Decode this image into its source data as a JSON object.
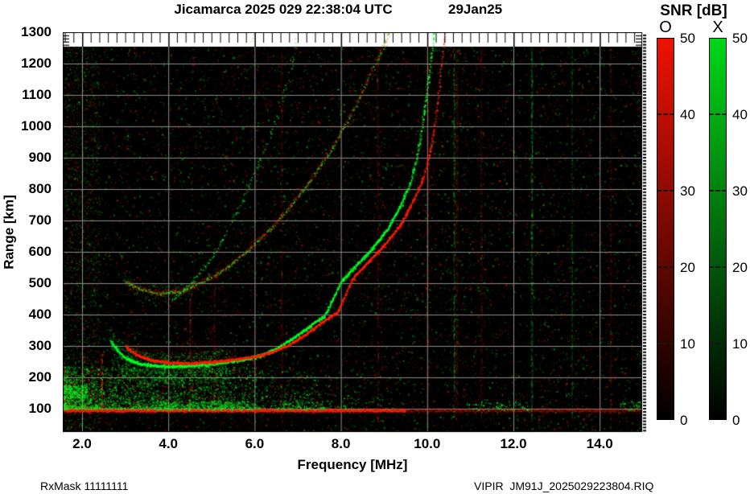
{
  "title": {
    "main": "Jicamarca 2025 029 22:38:04 UTC",
    "date": "29Jan25"
  },
  "footer": {
    "left": "RxMask 11111111",
    "right": "VIPIR  JM91J_2025029223804.RIQ"
  },
  "colorbar": {
    "title": "SNR [dB]",
    "min": 0,
    "max": 50,
    "ticks": [
      50,
      40,
      30,
      20,
      10,
      0
    ],
    "bars": [
      {
        "label": "O",
        "top_color": "#ee1200",
        "bottom_color": "#000000"
      },
      {
        "label": "X",
        "top_color": "#00d818",
        "bottom_color": "#000000"
      }
    ]
  },
  "chart_data": {
    "type": "heatmap",
    "xlabel": "Frequency [MHz]",
    "ylabel": "Range [km]",
    "x_ticks": [
      2,
      4,
      6,
      8,
      10,
      12,
      14
    ],
    "x_tick_labels": [
      "2.0",
      "4.0",
      "6.0",
      "8.0",
      "10.0",
      "12.0",
      "14.0"
    ],
    "x_range": [
      1.55,
      15.0
    ],
    "y_ticks": [
      100,
      200,
      300,
      400,
      500,
      600,
      700,
      800,
      900,
      1000,
      1100,
      1200,
      1300
    ],
    "y_tick_labels": [
      "100",
      "200",
      "300",
      "400",
      "500",
      "600",
      "700",
      "800",
      "900",
      "1000",
      "1100",
      "1200",
      "1300"
    ],
    "y_range": [
      25,
      1300
    ],
    "data_top_km": 1254,
    "grid": true,
    "grid_color": "#8c8c8c",
    "background": "#000000",
    "o_color": "#ff1e00",
    "x_color": "#00ff28",
    "series": [
      {
        "name": "F-trace O-mode 1st hop",
        "mode": "O",
        "render": "trace-O",
        "points": [
          [
            3.0,
            302
          ],
          [
            3.15,
            283
          ],
          [
            3.3,
            270
          ],
          [
            3.6,
            256
          ],
          [
            4.0,
            248
          ],
          [
            4.5,
            246
          ],
          [
            5.0,
            251
          ],
          [
            5.5,
            258
          ],
          [
            6.0,
            268
          ],
          [
            6.4,
            283
          ],
          [
            6.8,
            306
          ],
          [
            7.2,
            342
          ],
          [
            7.6,
            382
          ],
          [
            7.9,
            408
          ],
          [
            8.1,
            468
          ],
          [
            8.3,
            524
          ],
          [
            8.6,
            566
          ],
          [
            9.0,
            624
          ],
          [
            9.4,
            694
          ],
          [
            9.7,
            774
          ],
          [
            9.9,
            838
          ],
          [
            10.05,
            918
          ],
          [
            10.15,
            998
          ],
          [
            10.25,
            1098
          ],
          [
            10.32,
            1198
          ],
          [
            10.42,
            1312
          ]
        ]
      },
      {
        "name": "F-trace X-mode 1st hop",
        "mode": "X",
        "render": "trace-X",
        "points": [
          [
            2.65,
            318
          ],
          [
            2.8,
            288
          ],
          [
            3.0,
            262
          ],
          [
            3.3,
            246
          ],
          [
            3.7,
            238
          ],
          [
            4.2,
            236
          ],
          [
            4.7,
            241
          ],
          [
            5.2,
            248
          ],
          [
            5.7,
            257
          ],
          [
            6.1,
            271
          ],
          [
            6.5,
            293
          ],
          [
            6.9,
            328
          ],
          [
            7.3,
            368
          ],
          [
            7.6,
            396
          ],
          [
            7.8,
            450
          ],
          [
            8.0,
            508
          ],
          [
            8.3,
            552
          ],
          [
            8.7,
            610
          ],
          [
            9.1,
            680
          ],
          [
            9.4,
            758
          ],
          [
            9.6,
            822
          ],
          [
            9.75,
            902
          ],
          [
            9.85,
            982
          ],
          [
            9.95,
            1082
          ],
          [
            10.05,
            1182
          ],
          [
            10.15,
            1300
          ]
        ]
      },
      {
        "name": "2nd-hop multiple echo",
        "mode": "mixed",
        "render": "speckle-mixed",
        "points": [
          [
            3.0,
            505
          ],
          [
            3.4,
            480
          ],
          [
            3.8,
            468
          ],
          [
            4.3,
            476
          ],
          [
            4.8,
            506
          ],
          [
            5.3,
            546
          ],
          [
            5.8,
            602
          ],
          [
            6.3,
            666
          ],
          [
            6.8,
            742
          ],
          [
            7.3,
            832
          ],
          [
            7.8,
            936
          ],
          [
            8.2,
            1032
          ],
          [
            8.6,
            1142
          ],
          [
            9.0,
            1262
          ],
          [
            9.12,
            1310
          ]
        ]
      },
      {
        "name": "oblique echo trace",
        "mode": "X",
        "render": "speckle-green",
        "points": [
          [
            4.05,
            445
          ],
          [
            4.5,
            498
          ],
          [
            4.9,
            562
          ],
          [
            5.3,
            652
          ],
          [
            5.8,
            792
          ],
          [
            6.2,
            922
          ],
          [
            6.6,
            1062
          ],
          [
            6.9,
            1232
          ],
          [
            7.0,
            1310
          ]
        ]
      },
      {
        "name": "3rd-hop faint echo",
        "mode": "O",
        "render": "speckle-red-faint",
        "points": [
          [
            3.9,
            830
          ],
          [
            4.4,
            932
          ],
          [
            4.9,
            1032
          ],
          [
            5.4,
            1142
          ],
          [
            5.9,
            1262
          ],
          [
            6.05,
            1310
          ]
        ]
      }
    ],
    "e_region": {
      "band_km": 96,
      "fuzz_top_km": 235,
      "dense_fmax": 5.5,
      "sporadic_segments": [
        [
          3.6,
          6.0,
          1.0
        ],
        [
          6.5,
          7.6,
          0.45
        ],
        [
          10.9,
          12.35,
          0.4
        ],
        [
          14.45,
          14.95,
          0.55
        ]
      ]
    },
    "rfi_stripes": [
      {
        "f": 2.45,
        "color": "red",
        "a": 0.5,
        "km": [
          90,
          290
        ]
      },
      {
        "f": 4.5,
        "color": "red",
        "a": 0.35,
        "km": [
          90,
          460
        ]
      },
      {
        "f": 5.06,
        "color": "red",
        "a": 0.25,
        "km": [
          90,
          520
        ]
      },
      {
        "f": 6.62,
        "color": "red",
        "a": 0.2,
        "km": [
          60,
          1250
        ]
      },
      {
        "f": 8.85,
        "color": "red",
        "a": 0.22,
        "km": [
          60,
          1250
        ]
      },
      {
        "f": 10.02,
        "color": "red",
        "a": 0.2,
        "km": [
          60,
          1250
        ]
      },
      {
        "f": 10.62,
        "color": "green",
        "a": 0.3,
        "km": [
          60,
          1250
        ]
      },
      {
        "f": 10.68,
        "color": "red",
        "a": 0.25,
        "km": [
          60,
          1250
        ]
      },
      {
        "f": 11.25,
        "color": "red",
        "a": 0.2,
        "km": [
          60,
          1250
        ]
      },
      {
        "f": 12.42,
        "color": "green",
        "a": 0.35,
        "km": [
          60,
          1250
        ]
      },
      {
        "f": 13.35,
        "color": "green",
        "a": 0.2,
        "km": [
          60,
          1250
        ]
      },
      {
        "f": 14.25,
        "color": "red",
        "a": 0.2,
        "km": [
          60,
          1250
        ]
      }
    ],
    "noise": {
      "speckle": 16000,
      "left_extra": 2600,
      "left_fmax": 2.4,
      "below_band": 700,
      "green_fuzz": 5000
    }
  }
}
